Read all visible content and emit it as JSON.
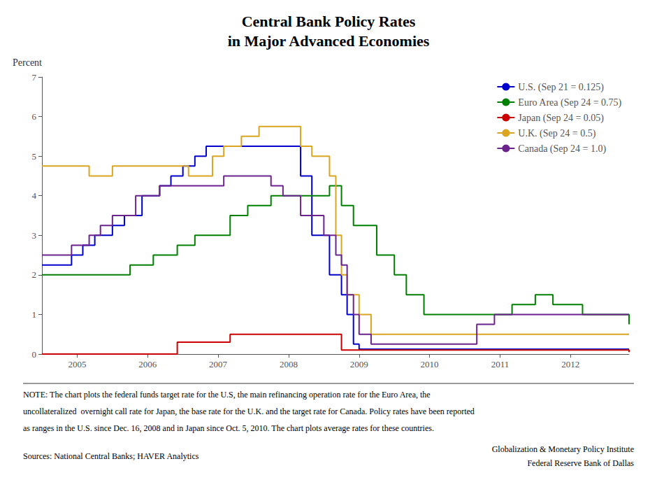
{
  "chart_data": {
    "type": "line",
    "title": "Central Bank Policy Rates",
    "subtitle": "in Major Advanced Economies",
    "ylabel": "Percent",
    "xlim": [
      2004.5,
      2012.83
    ],
    "xticks": [
      2005,
      2006,
      2007,
      2008,
      2009,
      2010,
      2011,
      2012
    ],
    "ylim": [
      0,
      7
    ],
    "yticks": [
      0,
      1,
      2,
      3,
      4,
      5,
      6,
      7
    ],
    "grid": false,
    "legend": "upper right",
    "series": [
      {
        "name": "U.S. (Sep 21 = 0.125)",
        "color": "#0000CC",
        "x": [
          2004.5,
          2004.75,
          2004.92,
          2005.08,
          2005.25,
          2005.5,
          2005.67,
          2005.92,
          2006.17,
          2006.33,
          2006.5,
          2006.67,
          2006.83,
          2007.0,
          2007.92,
          2008.17,
          2008.33,
          2008.58,
          2008.75,
          2008.83,
          2008.92,
          2009.0,
          2012.83
        ],
        "values": [
          2.25,
          2.25,
          2.5,
          2.75,
          3.0,
          3.25,
          3.5,
          4.0,
          4.25,
          4.5,
          4.75,
          5.0,
          5.25,
          5.25,
          5.25,
          4.5,
          3.0,
          2.0,
          1.5,
          1.0,
          0.25,
          0.125,
          0.125
        ]
      },
      {
        "name": "Euro Area (Sep 24 = 0.75)",
        "color": "#008000",
        "x": [
          2004.5,
          2005.67,
          2005.75,
          2006.08,
          2006.42,
          2006.67,
          2007.17,
          2007.42,
          2007.75,
          2008.58,
          2008.75,
          2008.92,
          2009.25,
          2009.5,
          2009.67,
          2009.92,
          2010.92,
          2011.17,
          2011.5,
          2011.75,
          2012.17,
          2012.83
        ],
        "values": [
          2.0,
          2.0,
          2.25,
          2.5,
          2.75,
          3.0,
          3.5,
          3.75,
          4.0,
          4.25,
          3.75,
          3.25,
          2.5,
          2.0,
          1.5,
          1.0,
          1.0,
          1.25,
          1.5,
          1.25,
          1.0,
          0.75
        ]
      },
      {
        "name": "Japan (Sep 24 = 0.05)",
        "color": "#CC0000",
        "x": [
          2004.5,
          2006.33,
          2006.42,
          2007.17,
          2008.67,
          2008.75,
          2010.75,
          2012.83
        ],
        "values": [
          0.0,
          0.0,
          0.3,
          0.5,
          0.5,
          0.1,
          0.1,
          0.05
        ]
      },
      {
        "name": "U.K. (Sep 24 = 0.5)",
        "color": "#DAA520",
        "x": [
          2004.5,
          2004.92,
          2005.17,
          2005.5,
          2006.5,
          2006.58,
          2006.92,
          2007.08,
          2007.33,
          2007.58,
          2008.0,
          2008.17,
          2008.33,
          2008.58,
          2008.67,
          2008.75,
          2008.83,
          2009.0,
          2009.17,
          2009.33,
          2012.83
        ],
        "values": [
          4.75,
          4.75,
          4.5,
          4.75,
          4.75,
          4.5,
          5.0,
          5.25,
          5.5,
          5.75,
          5.75,
          5.25,
          5.0,
          4.5,
          3.0,
          2.0,
          1.5,
          1.0,
          0.5,
          0.5,
          0.5
        ]
      },
      {
        "name": "Canada (Sep 24 = 1.0)",
        "color": "#6B238E",
        "x": [
          2004.5,
          2004.75,
          2004.92,
          2005.17,
          2005.33,
          2005.5,
          2005.83,
          2006.17,
          2006.5,
          2007.08,
          2007.58,
          2007.75,
          2007.92,
          2008.17,
          2008.5,
          2008.67,
          2008.75,
          2008.83,
          2008.92,
          2009.0,
          2009.17,
          2009.5,
          2010.5,
          2010.67,
          2010.92,
          2012.83
        ],
        "values": [
          2.5,
          2.5,
          2.75,
          3.0,
          3.25,
          3.5,
          4.0,
          4.25,
          4.25,
          4.5,
          4.5,
          4.25,
          4.0,
          3.5,
          3.0,
          2.5,
          2.25,
          1.5,
          1.0,
          0.5,
          0.25,
          0.25,
          0.25,
          0.75,
          1.0,
          1.0
        ]
      }
    ],
    "notes": [
      "NOTE: The chart plots the federal funds target rate for the U.S, the main refinancing operation rate for the Euro Area, the",
      "uncollateralized  overnight call rate for Japan, the base rate for the U.K. and the target rate for Canada. Policy rates have been reported",
      "as ranges in the U.S. since Dec. 16, 2008 and in Japan since Oct. 5, 2010. The chart plots average rates for these countries."
    ],
    "source": "Sources: National Central Banks; HAVER Analytics",
    "attribution": [
      "Globalization & Monetary Policy Institute",
      "Federal Reserve Bank of Dallas"
    ]
  }
}
